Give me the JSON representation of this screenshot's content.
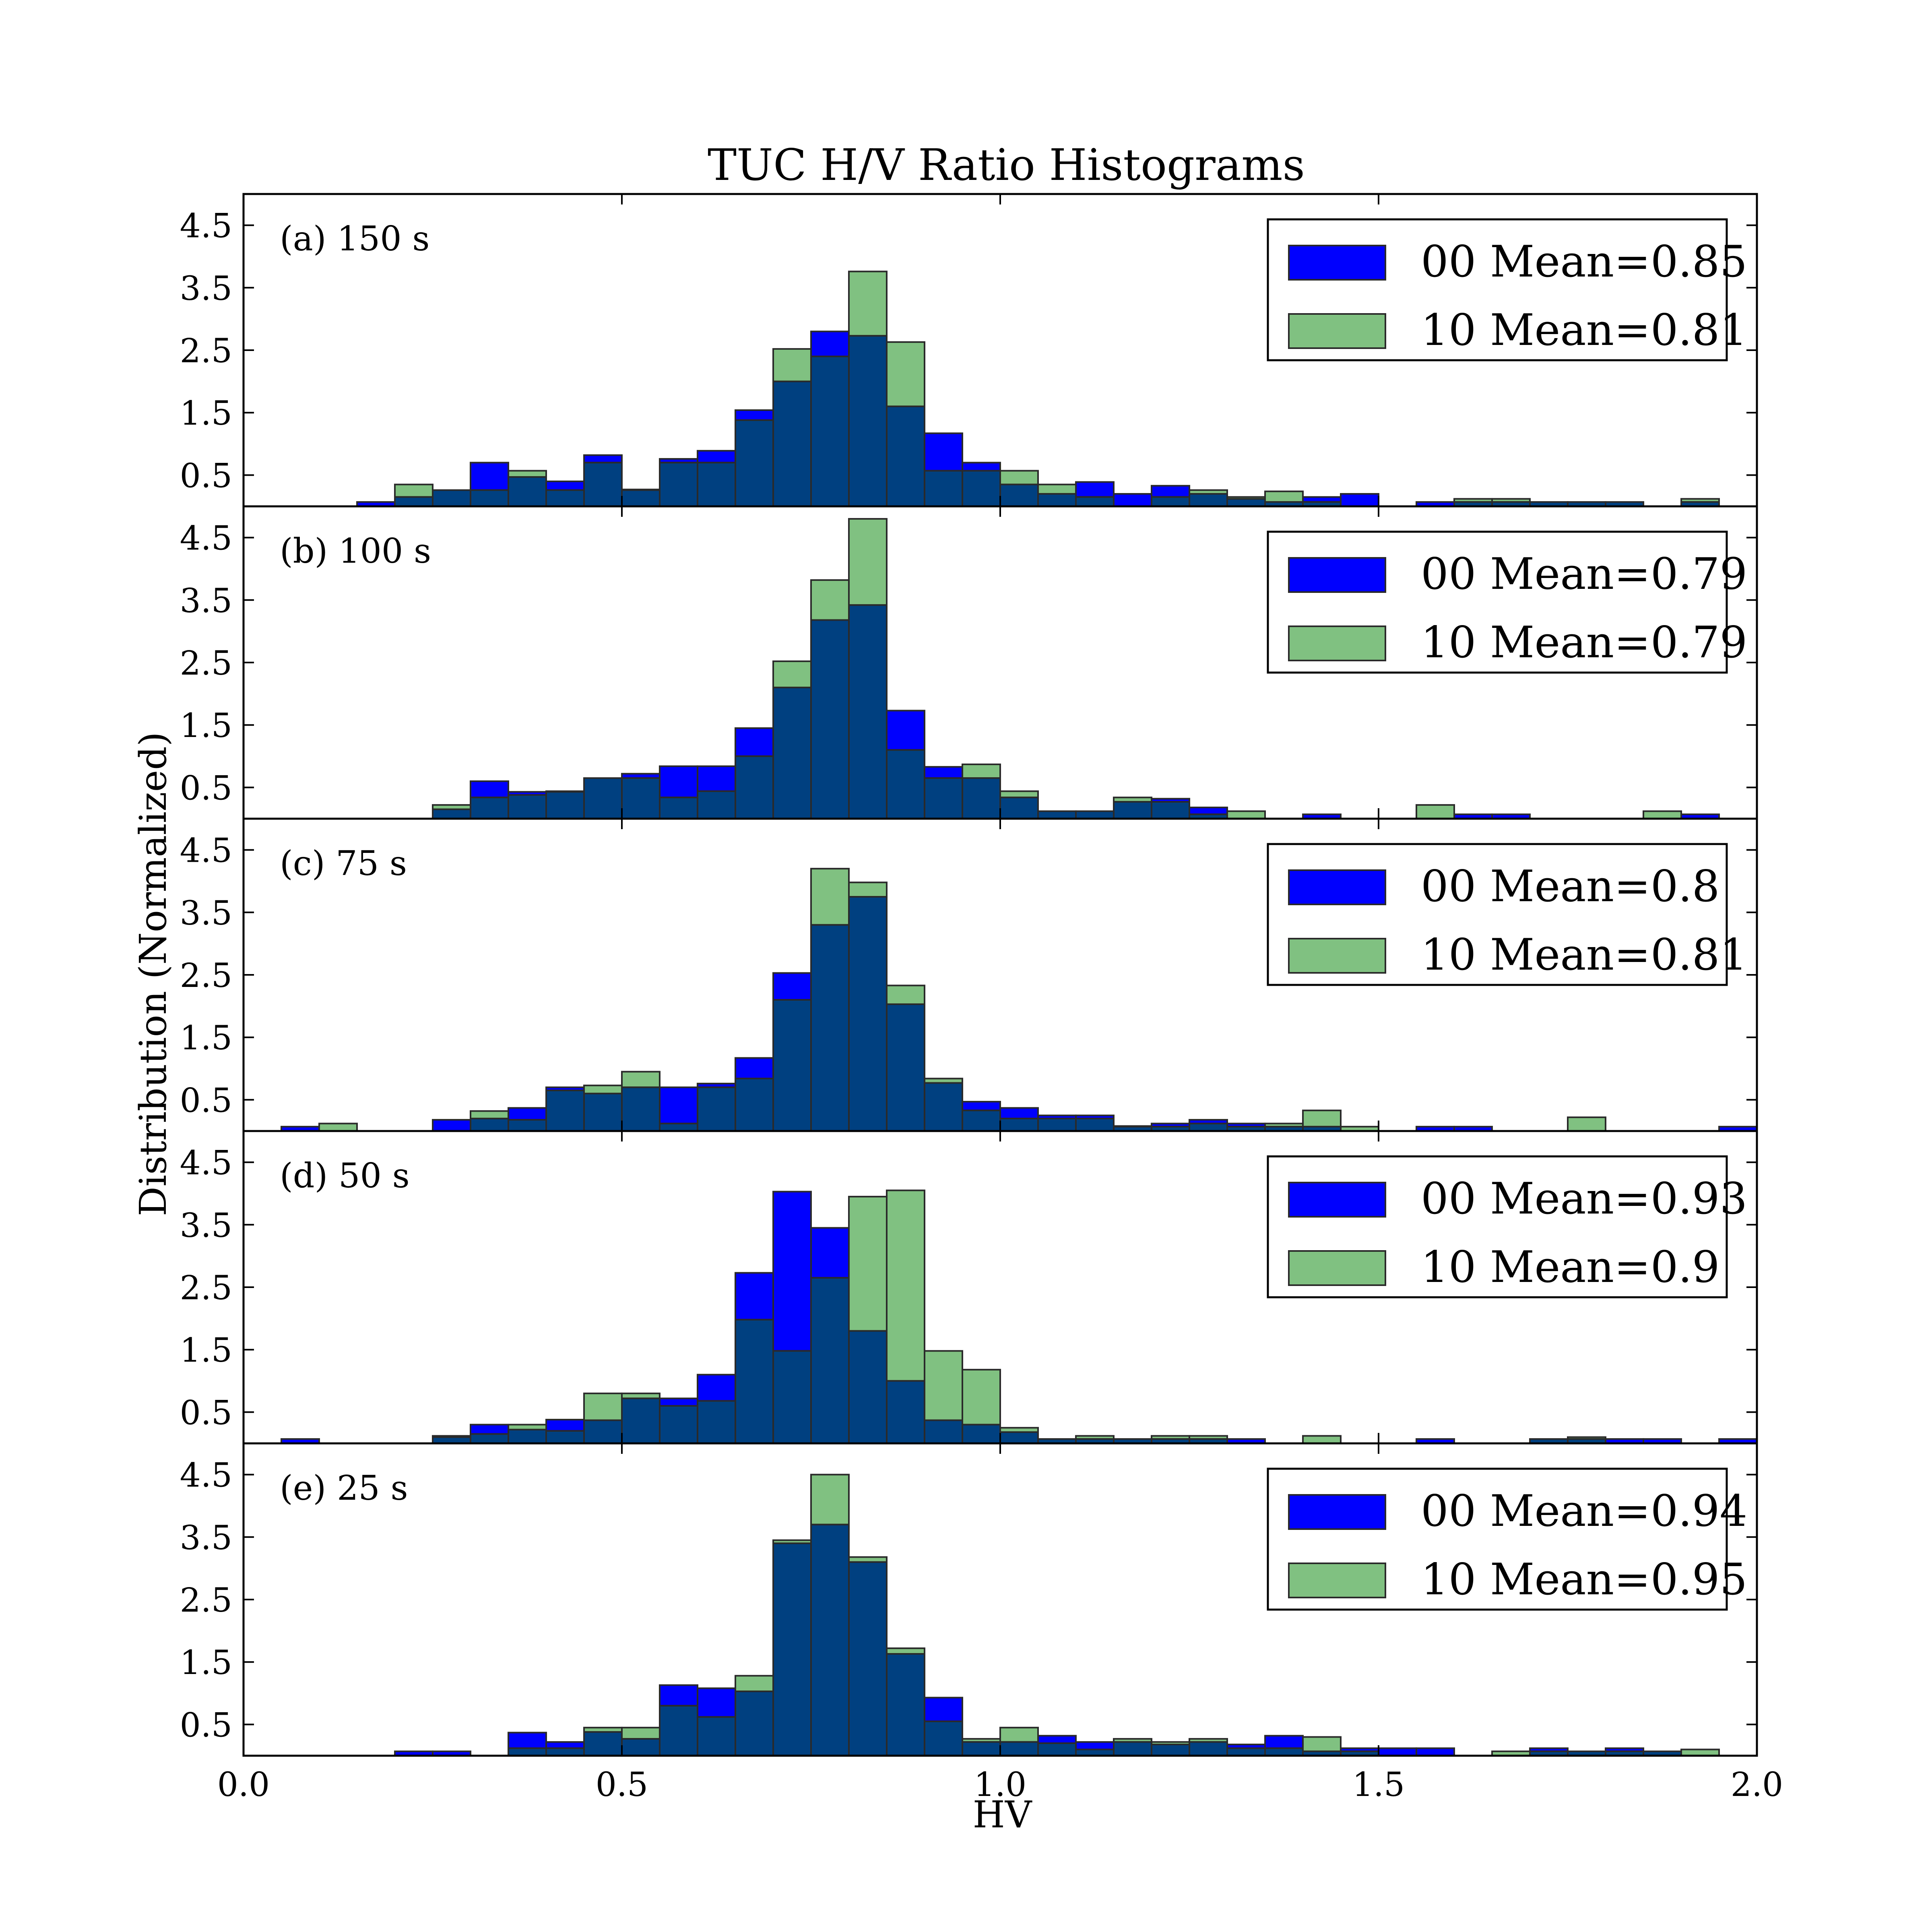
{
  "figure": {
    "title": "TUC H/V Ratio Histograms",
    "xlabel": "HV",
    "ylabel": "Distribution (Normalized)"
  },
  "colors": {
    "series_00": "#0000ff",
    "series_10": "#80c080",
    "overlap": "#004080",
    "edge": "#2a2a2a"
  },
  "chart_data": {
    "type": "bar",
    "bin_width": 0.05,
    "bin_starts": [
      0.0,
      0.05,
      0.1,
      0.15,
      0.2,
      0.25,
      0.3,
      0.35,
      0.4,
      0.45,
      0.5,
      0.55,
      0.6,
      0.65,
      0.7,
      0.75,
      0.8,
      0.85,
      0.9,
      0.95,
      1.0,
      1.05,
      1.1,
      1.15,
      1.2,
      1.25,
      1.3,
      1.35,
      1.4,
      1.45,
      1.5,
      1.55,
      1.6,
      1.65,
      1.7,
      1.75,
      1.8,
      1.85,
      1.9,
      1.95
    ],
    "xlim": [
      0.0,
      2.0
    ],
    "ylim": [
      0,
      5
    ],
    "xticks": [
      "0.0",
      "0.5",
      "1.0",
      "1.5",
      "2.0"
    ],
    "yticks": [
      "0.5",
      "1.5",
      "2.5",
      "3.5",
      "4.5"
    ],
    "grid": false,
    "legend_position": "upper right",
    "panels": [
      {
        "label": "(a) 150 s",
        "series": [
          {
            "name": "00 Mean=0.85",
            "values": [
              0,
              0,
              0,
              0.07,
              0.15,
              0.26,
              0.7,
              0.47,
              0.4,
              0.82,
              0.27,
              0.76,
              0.89,
              1.54,
              2.0,
              2.8,
              2.73,
              1.6,
              1.17,
              0.7,
              0.35,
              0.2,
              0.39,
              0.2,
              0.33,
              0.2,
              0.12,
              0.07,
              0.15,
              0.2,
              0,
              0.07,
              0.07,
              0.07,
              0.07,
              0.07,
              0.07,
              0,
              0.07,
              0
            ]
          },
          {
            "name": "10 Mean=0.81",
            "values": [
              0,
              0,
              0,
              0,
              0.35,
              0.26,
              0.26,
              0.57,
              0.26,
              0.7,
              0.26,
              0.7,
              0.7,
              1.38,
              2.52,
              2.4,
              3.76,
              2.63,
              0.57,
              0.57,
              0.57,
              0.35,
              0.15,
              0,
              0.15,
              0.26,
              0.15,
              0.24,
              0.07,
              0,
              0,
              0,
              0.12,
              0.12,
              0.07,
              0.07,
              0.07,
              0,
              0.12,
              0
            ]
          }
        ]
      },
      {
        "label": "(b) 100 s",
        "series": [
          {
            "name": "00 Mean=0.79",
            "values": [
              0,
              0,
              0,
              0,
              0,
              0.15,
              0.6,
              0.43,
              0.43,
              0.65,
              0.72,
              0.84,
              0.84,
              1.45,
              2.1,
              3.18,
              3.42,
              1.73,
              0.83,
              0.65,
              0.34,
              0.12,
              0.12,
              0.27,
              0.32,
              0.18,
              0,
              0,
              0.07,
              0,
              0,
              0,
              0.07,
              0.07,
              0,
              0,
              0,
              0,
              0.07,
              0
            ]
          },
          {
            "name": "10 Mean=0.79",
            "values": [
              0,
              0,
              0,
              0,
              0,
              0.22,
              0.34,
              0.38,
              0.44,
              0.65,
              0.65,
              0.34,
              0.44,
              1.0,
              2.52,
              3.82,
              4.8,
              1.1,
              0.65,
              0.87,
              0.44,
              0.12,
              0.12,
              0.34,
              0.27,
              0.07,
              0.12,
              0,
              0,
              0,
              0,
              0.22,
              0,
              0,
              0,
              0,
              0,
              0.12,
              0,
              0
            ]
          }
        ]
      },
      {
        "label": "(c) 75 s",
        "series": [
          {
            "name": "00 Mean=0.8",
            "values": [
              0,
              0.07,
              0,
              0,
              0,
              0.18,
              0.2,
              0.37,
              0.7,
              0.6,
              0.7,
              0.7,
              0.76,
              1.17,
              2.53,
              3.3,
              3.75,
              2.03,
              0.77,
              0.47,
              0.37,
              0.25,
              0.25,
              0.08,
              0.12,
              0.18,
              0.12,
              0.07,
              0.07,
              0,
              0,
              0.07,
              0.07,
              0,
              0,
              0,
              0,
              0,
              0,
              0.07
            ]
          },
          {
            "name": "10 Mean=0.81",
            "values": [
              0,
              0,
              0.12,
              0,
              0,
              0,
              0.32,
              0.18,
              0.65,
              0.73,
              0.95,
              0.12,
              0.7,
              0.84,
              2.1,
              4.2,
              3.98,
              2.33,
              0.84,
              0.33,
              0.2,
              0.2,
              0.2,
              0.07,
              0.07,
              0.12,
              0.07,
              0.12,
              0.33,
              0.07,
              0,
              0,
              0,
              0,
              0,
              0.22,
              0,
              0,
              0,
              0
            ]
          }
        ]
      },
      {
        "label": "(d) 50 s",
        "series": [
          {
            "name": "00 Mean=0.93",
            "values": [
              0,
              0.07,
              0,
              0,
              0,
              0.12,
              0.3,
              0.22,
              0.38,
              0.37,
              0.72,
              0.72,
              1.1,
              2.73,
              4.03,
              3.45,
              1.8,
              1.0,
              0.37,
              0.3,
              0.18,
              0.07,
              0.07,
              0.07,
              0.07,
              0.07,
              0.07,
              0,
              0,
              0,
              0,
              0.07,
              0,
              0,
              0.07,
              0.07,
              0.07,
              0.07,
              0,
              0.07
            ]
          },
          {
            "name": "10 Mean=0.9",
            "values": [
              0,
              0,
              0,
              0,
              0,
              0.1,
              0.15,
              0.3,
              0.2,
              0.8,
              0.8,
              0.6,
              0.68,
              1.98,
              1.48,
              2.65,
              3.95,
              4.05,
              1.48,
              1.18,
              0.25,
              0.07,
              0.12,
              0.07,
              0.12,
              0.12,
              0,
              0,
              0.12,
              0,
              0,
              0,
              0,
              0,
              0.07,
              0.1,
              0,
              0,
              0,
              0
            ]
          }
        ]
      },
      {
        "label": "(e) 25 s",
        "series": [
          {
            "name": "00 Mean=0.94",
            "values": [
              0,
              0,
              0,
              0,
              0.07,
              0.07,
              0,
              0.37,
              0.22,
              0.38,
              0.27,
              1.13,
              1.08,
              1.03,
              3.4,
              3.7,
              3.1,
              1.63,
              0.93,
              0.22,
              0.22,
              0.32,
              0.22,
              0.22,
              0.18,
              0.22,
              0.18,
              0.32,
              0.07,
              0.12,
              0.12,
              0.12,
              0,
              0,
              0.12,
              0.07,
              0.12,
              0.07,
              0,
              0
            ]
          },
          {
            "name": "10 Mean=0.95",
            "values": [
              0,
              0,
              0,
              0,
              0,
              0,
              0,
              0.12,
              0.12,
              0.45,
              0.45,
              0.8,
              0.62,
              1.28,
              3.45,
              4.5,
              3.18,
              1.72,
              0.55,
              0.27,
              0.45,
              0.2,
              0.1,
              0.27,
              0.22,
              0.27,
              0.12,
              0.12,
              0.3,
              0.07,
              0,
              0,
              0,
              0.07,
              0.07,
              0.07,
              0.07,
              0.07,
              0.1,
              0
            ]
          }
        ]
      }
    ]
  }
}
